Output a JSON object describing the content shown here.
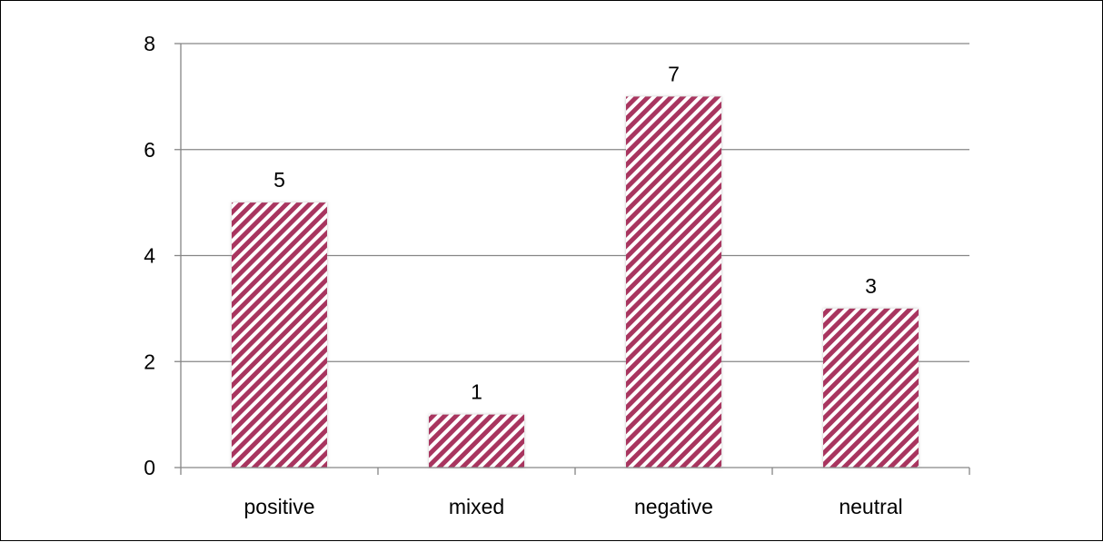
{
  "chart_data": {
    "type": "bar",
    "categories": [
      "positive",
      "mixed",
      "negative",
      "neutral"
    ],
    "values": [
      5,
      1,
      7,
      3
    ],
    "data_labels": [
      "5",
      "1",
      "7",
      "3"
    ],
    "title": "",
    "xlabel": "",
    "ylabel": "",
    "ylim": [
      0,
      8
    ],
    "yticks": [
      0,
      2,
      4,
      6,
      8
    ],
    "ytick_labels": [
      "0",
      "2",
      "4",
      "6",
      "8"
    ],
    "grid": true,
    "legend": "none",
    "bar_pattern": "diagonal-stripes",
    "colors": {
      "bar_stripe": "#a8345f",
      "bar_gap": "#ffffff",
      "gridline": "#868686",
      "axis": "#868686",
      "text": "#000000"
    }
  }
}
